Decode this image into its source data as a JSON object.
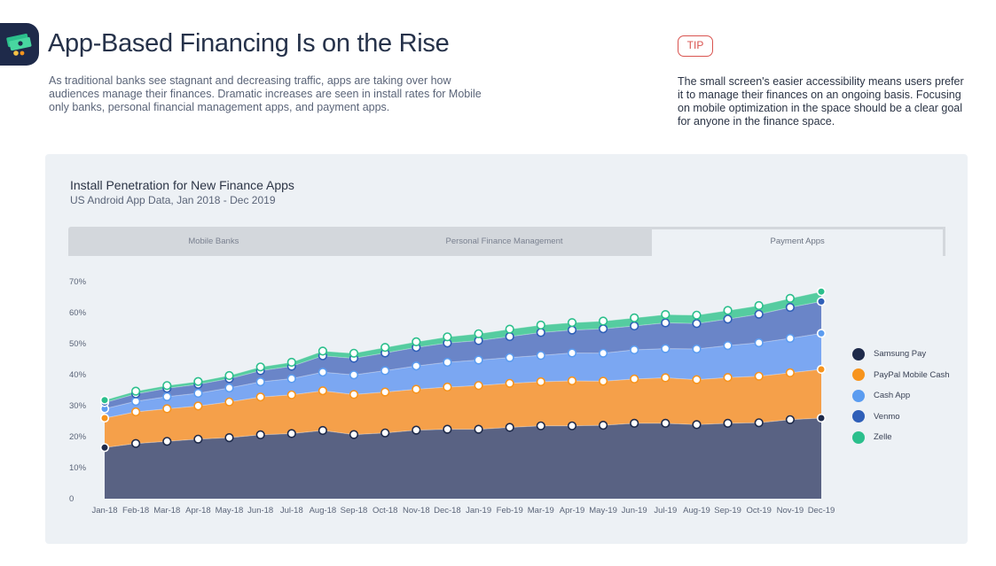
{
  "header": {
    "title": "App-Based Financing Is on the Rise",
    "intro": "As traditional banks see stagnant and decreasing traffic, apps are taking over how audiences manage their finances. Dramatic increases are seen in install rates for Mobile only banks, personal financial management apps, and payment apps.",
    "logo_icon": "money-stack-icon"
  },
  "tip": {
    "badge": "TIP",
    "text": "The small screen's easier accessibility means users prefer it to manage their finances on an ongoing basis. Focusing on mobile optimization in the space should be a clear goal for anyone in the finance space."
  },
  "tabs": [
    {
      "label": "Mobile Banks",
      "active": false
    },
    {
      "label": "Personal Finance Management",
      "active": false
    },
    {
      "label": "Payment Apps",
      "active": true
    }
  ],
  "chart_data": {
    "type": "area",
    "stacked": true,
    "title": "Install Penetration for New Finance Apps",
    "subtitle": "US Android App Data, Jan 2018 - Dec 2019",
    "xlabel": "",
    "ylabel": "",
    "ylim": [
      0,
      70
    ],
    "yticks": [
      0,
      10,
      20,
      30,
      40,
      50,
      60,
      70
    ],
    "ytick_labels": [
      "0",
      "10%",
      "20%",
      "30%",
      "40%",
      "50%",
      "60%",
      "70%"
    ],
    "grid": false,
    "legend_position": "right",
    "categories": [
      "Jan-18",
      "Feb-18",
      "Mar-18",
      "Apr-18",
      "May-18",
      "Jun-18",
      "Jul-18",
      "Aug-18",
      "Sep-18",
      "Oct-18",
      "Nov-18",
      "Dec-18",
      "Jan-19",
      "Feb-19",
      "Mar-19",
      "Apr-19",
      "May-19",
      "Jun-19",
      "Jul-19",
      "Aug-19",
      "Sep-19",
      "Oct-19",
      "Nov-19",
      "Dec-19"
    ],
    "series": [
      {
        "name": "Samsung Pay",
        "color": "#1e2a4a",
        "fill": "#596283",
        "values": [
          16.5,
          17.8,
          18.5,
          19.2,
          19.7,
          20.6,
          21.0,
          22.0,
          20.7,
          21.2,
          22.1,
          22.4,
          22.4,
          23.0,
          23.5,
          23.5,
          23.7,
          24.3,
          24.3,
          23.9,
          24.3,
          24.5,
          25.5,
          26.0
        ]
      },
      {
        "name": "PayPal Mobile Cash",
        "color": "#f7941d",
        "fill": "#f5a04a",
        "values": [
          9.5,
          10.2,
          10.5,
          10.7,
          11.5,
          12.2,
          12.5,
          12.8,
          12.9,
          13.2,
          13.2,
          13.6,
          14.1,
          14.2,
          14.2,
          14.5,
          14.2,
          14.3,
          14.7,
          14.5,
          14.8,
          15.0,
          15.1,
          15.7
        ]
      },
      {
        "name": "Cash App",
        "color": "#5b9cf0",
        "fill": "#7ba7f2",
        "values": [
          3.0,
          3.4,
          3.9,
          4.1,
          4.5,
          4.9,
          5.2,
          6.0,
          6.3,
          6.9,
          7.5,
          8.0,
          8.2,
          8.3,
          8.5,
          9.0,
          9.0,
          9.4,
          9.4,
          9.9,
          10.3,
          10.8,
          11.1,
          11.6
        ]
      },
      {
        "name": "Venmo",
        "color": "#2f5fb8",
        "fill": "#6a85c8",
        "values": [
          2.0,
          2.4,
          2.7,
          2.9,
          3.0,
          3.6,
          4.0,
          5.3,
          5.4,
          5.7,
          6.0,
          6.2,
          6.3,
          6.8,
          7.4,
          7.4,
          7.9,
          7.7,
          8.3,
          8.2,
          8.5,
          9.2,
          10.0,
          10.3
        ]
      },
      {
        "name": "Zelle",
        "color": "#2bbf8c",
        "fill": "#55cca0",
        "values": [
          0.8,
          0.9,
          0.9,
          0.9,
          1.0,
          1.2,
          1.3,
          1.5,
          1.6,
          1.8,
          1.8,
          2.0,
          2.2,
          2.4,
          2.4,
          2.4,
          2.5,
          2.6,
          2.7,
          2.7,
          2.8,
          2.8,
          2.9,
          3.2
        ]
      }
    ]
  }
}
